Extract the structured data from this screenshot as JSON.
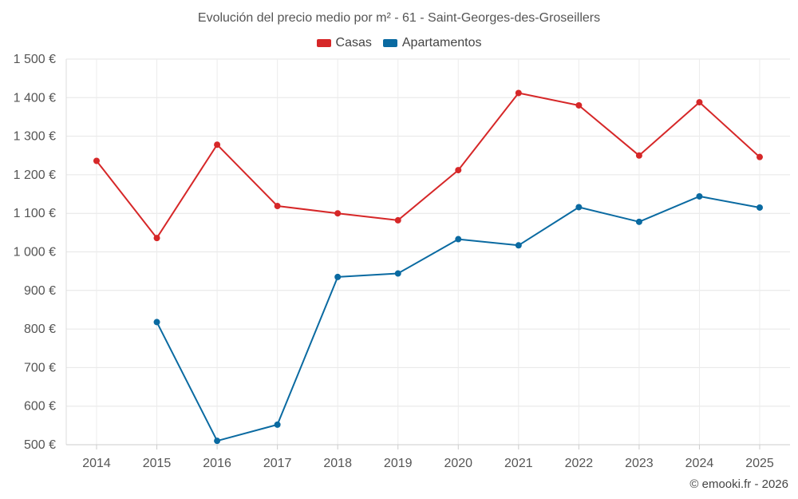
{
  "chart_data": {
    "type": "line",
    "title": "Evolución del precio medio por m² - 61 - Saint-Georges-des-Groseillers",
    "xlabel": "",
    "ylabel": "",
    "categories": [
      "2014",
      "2015",
      "2016",
      "2017",
      "2018",
      "2019",
      "2020",
      "2021",
      "2022",
      "2023",
      "2024",
      "2025"
    ],
    "ylim": [
      500,
      1500
    ],
    "yticks": [
      500,
      600,
      700,
      800,
      900,
      1000,
      1100,
      1200,
      1300,
      1400,
      1500
    ],
    "ytick_labels": [
      "500 €",
      "600 €",
      "700 €",
      "800 €",
      "900 €",
      "1 000 €",
      "1 100 €",
      "1 200 €",
      "1 300 €",
      "1 400 €",
      "1 500 €"
    ],
    "grid": true,
    "legend_position": "top-center",
    "series": [
      {
        "name": "Casas",
        "color": "#d62728",
        "values": [
          1236,
          1036,
          1278,
          1119,
          1100,
          1082,
          1212,
          1412,
          1380,
          1250,
          1388,
          1246
        ]
      },
      {
        "name": "Apartamentos",
        "color": "#0a6aa1",
        "values": [
          null,
          818,
          510,
          552,
          935,
          944,
          1033,
          1017,
          1116,
          1078,
          1144,
          1115
        ]
      }
    ]
  },
  "credit": "© emooki.fr - 2026"
}
